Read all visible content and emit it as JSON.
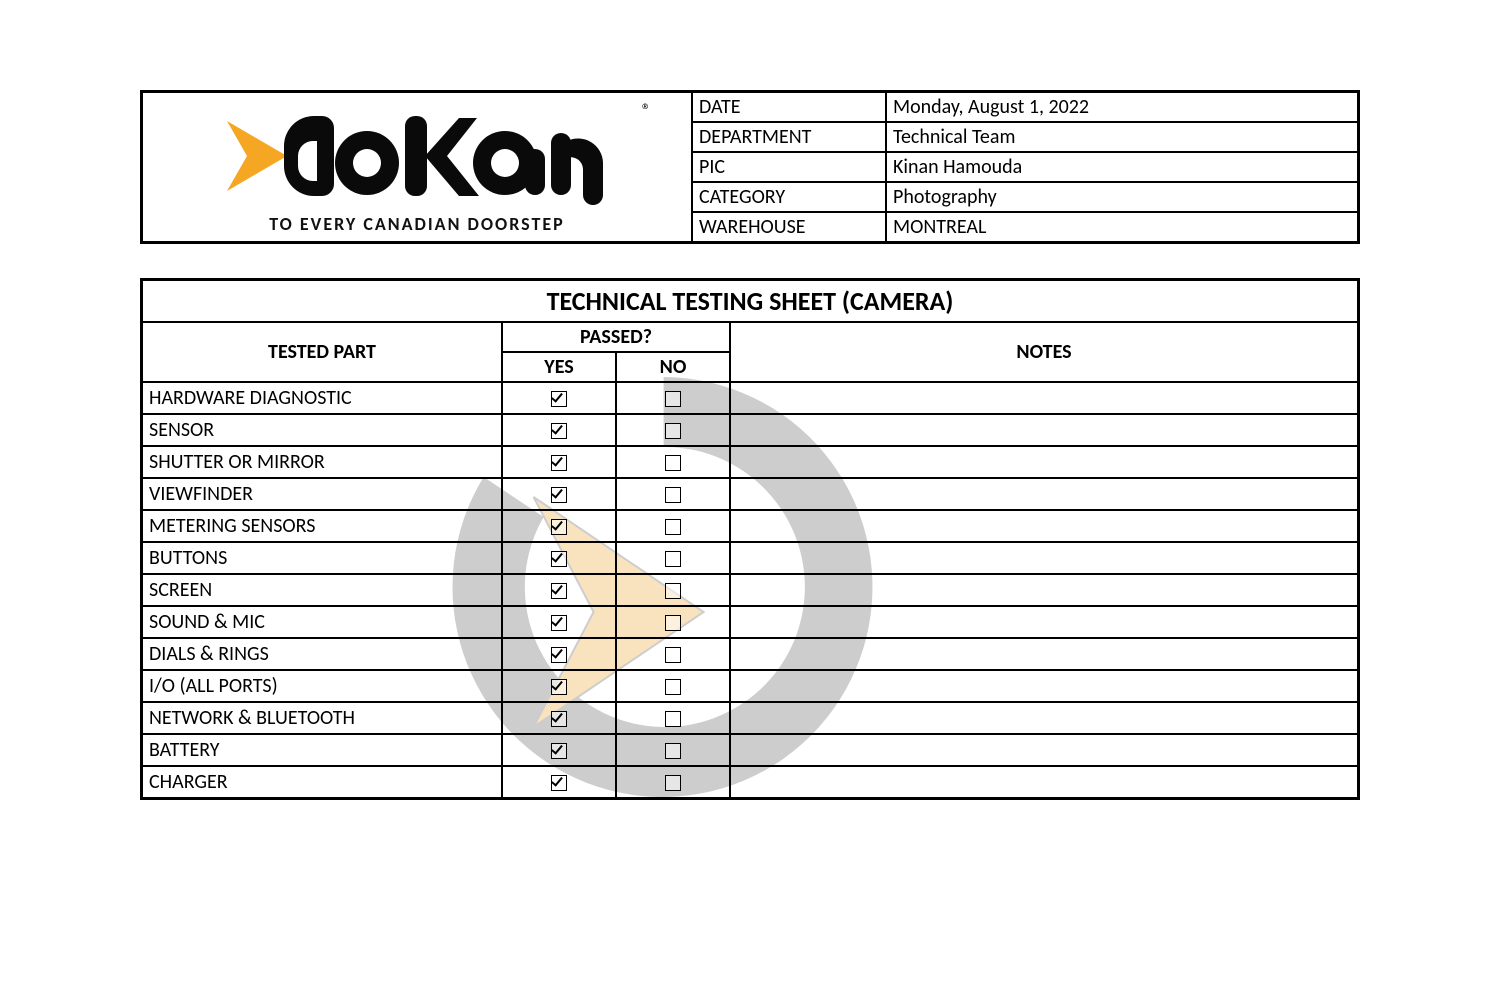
{
  "logo": {
    "tagline": "TO EVERY CANADIAN DOORSTEP",
    "registered": "®",
    "brand_color": "#f5a623",
    "text_color": "#0a0a0a"
  },
  "meta": {
    "rows": [
      {
        "label": "DATE",
        "value": "Monday, August 1, 2022"
      },
      {
        "label": "DEPARTMENT",
        "value": "Technical Team"
      },
      {
        "label": "PIC",
        "value": "Kinan Hamouda"
      },
      {
        "label": "CATEGORY",
        "value": "Photography"
      },
      {
        "label": "WAREHOUSE",
        "value": "MONTREAL"
      }
    ]
  },
  "sheet": {
    "title": "TECHNICAL TESTING SHEET (CAMERA)",
    "headers": {
      "part": "TESTED PART",
      "passed": "PASSED?",
      "yes": "YES",
      "no": "NO",
      "notes": "NOTES"
    },
    "rows": [
      {
        "part": "HARDWARE DIAGNOSTIC",
        "yes": true,
        "no": false,
        "notes": ""
      },
      {
        "part": "SENSOR",
        "yes": true,
        "no": false,
        "notes": ""
      },
      {
        "part": "SHUTTER OR MIRROR",
        "yes": true,
        "no": false,
        "notes": ""
      },
      {
        "part": "VIEWFINDER",
        "yes": true,
        "no": false,
        "notes": ""
      },
      {
        "part": "METERING SENSORS",
        "yes": true,
        "no": false,
        "notes": ""
      },
      {
        "part": "BUTTONS",
        "yes": true,
        "no": false,
        "notes": ""
      },
      {
        "part": "SCREEN",
        "yes": true,
        "no": false,
        "notes": ""
      },
      {
        "part": "SOUND & MIC",
        "yes": true,
        "no": false,
        "notes": ""
      },
      {
        "part": "DIALS & RINGS",
        "yes": true,
        "no": false,
        "notes": ""
      },
      {
        "part": "I/O (ALL PORTS)",
        "yes": true,
        "no": false,
        "notes": ""
      },
      {
        "part": "NETWORK & BLUETOOTH",
        "yes": true,
        "no": false,
        "notes": ""
      },
      {
        "part": "BATTERY",
        "yes": true,
        "no": false,
        "notes": ""
      },
      {
        "part": "CHARGER",
        "yes": true,
        "no": false,
        "notes": ""
      }
    ]
  },
  "watermark": {
    "color_gray": "#a6a6a6",
    "color_accent": "#f5cd8b"
  }
}
